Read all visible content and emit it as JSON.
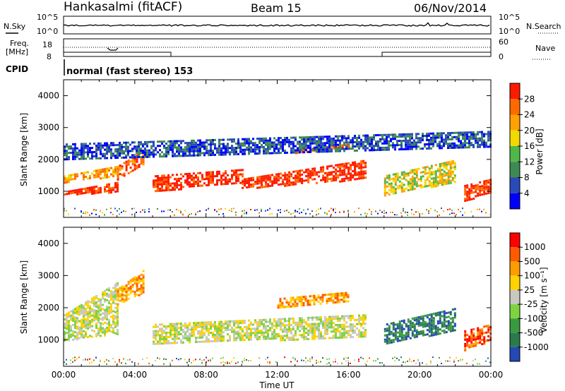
{
  "header": {
    "station": "Hankasalmi (fitACF)",
    "beam": "Beam 15",
    "date": "06/Nov/2014"
  },
  "strip": {
    "nsky_label": "N.Sky",
    "nsky_ticks": [
      "10^5",
      "10^0"
    ],
    "nsearch_label": "N.Search",
    "nsearch_ticks": [
      "10^5",
      "10^0"
    ],
    "freq_label_1": "Freq.",
    "freq_label_2": "[MHz]",
    "freq_ticks": [
      "18",
      "8"
    ],
    "nave_label": "Nave",
    "nave_ticks": [
      "60",
      "0"
    ],
    "cpid_label": "CPID",
    "cpid_text": "normal (fast stereo) 153"
  },
  "colors": {
    "power": [
      "#0000ff",
      "#2a4ab8",
      "#3f8a54",
      "#50b848",
      "#f2d900",
      "#ffa100",
      "#ff6a00",
      "#ff1a00"
    ],
    "velocity": [
      "#2448b4",
      "#2a7a4e",
      "#3a9a3e",
      "#7ed33f",
      "#c8c8c0",
      "#ffd200",
      "#ff9d00",
      "#ff5a00",
      "#ff0000"
    ]
  },
  "chart_data": [
    {
      "type": "heatmap",
      "panel": "power",
      "ylabel": "Slant Range [km]",
      "yticks": [
        "4000",
        "3000",
        "2000",
        "1000"
      ],
      "ylim": [
        180,
        4500
      ],
      "xlim": [
        0,
        24
      ],
      "colorbar_label": "Power [dB]",
      "colorbar_ticks": [
        "28",
        "24",
        "20",
        "16",
        "12",
        "8",
        "4"
      ],
      "bands": [
        {
          "x": [
            0.0,
            3.0
          ],
          "y0": [
            1000,
            1300
          ],
          "y1": [
            900,
            1000
          ],
          "level": 7
        },
        {
          "x": [
            0.0,
            3.0
          ],
          "y0": [
            1500,
            1800
          ],
          "y1": [
            1300,
            1500
          ],
          "level": 5
        },
        {
          "x": [
            3.0,
            4.5
          ],
          "y0": [
            1800,
            2300
          ],
          "y1": [
            1400,
            1900
          ],
          "level": 6
        },
        {
          "x": [
            5.0,
            10.0
          ],
          "y0": [
            1500,
            1700
          ],
          "y1": [
            1000,
            1300
          ],
          "level": 7
        },
        {
          "x": [
            10.0,
            17.0
          ],
          "y0": [
            1400,
            2000
          ],
          "y1": [
            1100,
            1400
          ],
          "level": 7
        },
        {
          "x": [
            13.0,
            16.0
          ],
          "y0": [
            2300,
            2500
          ],
          "y1": [
            2200,
            2400
          ],
          "level": 6
        },
        {
          "x": [
            18.0,
            22.0
          ],
          "y0": [
            1500,
            2000
          ],
          "y1": [
            900,
            1300
          ],
          "level": 4
        },
        {
          "x": [
            22.5,
            24.0
          ],
          "y0": [
            1200,
            1400
          ],
          "y1": [
            700,
            1000
          ],
          "level": 7
        },
        {
          "x": [
            0.0,
            24.0
          ],
          "y0": [
            2500,
            2900
          ],
          "y1": [
            2000,
            2400
          ],
          "level": 1
        }
      ]
    },
    {
      "type": "heatmap",
      "panel": "velocity",
      "ylabel": "Slant Range [km]",
      "yticks": [
        "4000",
        "3000",
        "2000",
        "1000"
      ],
      "ylim": [
        180,
        4500
      ],
      "xlim": [
        0,
        24
      ],
      "xticks": [
        "00:00",
        "04:00",
        "08:00",
        "12:00",
        "16:00",
        "20:00",
        "00:00"
      ],
      "xlabel": "Time UT",
      "colorbar_label": "Velocity [m s⁻¹]",
      "colorbar_ticks": [
        "1000",
        "500",
        "100",
        "25",
        "-25",
        "-100",
        "-500",
        "-1000"
      ],
      "bands": [
        {
          "x": [
            0.0,
            3.0
          ],
          "y0": [
            1800,
            2800
          ],
          "y1": [
            1000,
            1200
          ],
          "level": 4
        },
        {
          "x": [
            5.0,
            17.0
          ],
          "y0": [
            1500,
            1800
          ],
          "y1": [
            900,
            1100
          ],
          "level": 4
        },
        {
          "x": [
            3.0,
            4.5
          ],
          "y0": [
            2600,
            3200
          ],
          "y1": [
            2100,
            2500
          ],
          "level": 6
        },
        {
          "x": [
            12.0,
            16.0
          ],
          "y0": [
            2300,
            2500
          ],
          "y1": [
            2000,
            2200
          ],
          "level": 6
        },
        {
          "x": [
            18.0,
            22.0
          ],
          "y0": [
            1500,
            2000
          ],
          "y1": [
            900,
            1300
          ],
          "level": 1
        },
        {
          "x": [
            22.5,
            24.0
          ],
          "y0": [
            1300,
            1500
          ],
          "y1": [
            700,
            1000
          ],
          "level": 7
        }
      ]
    }
  ]
}
